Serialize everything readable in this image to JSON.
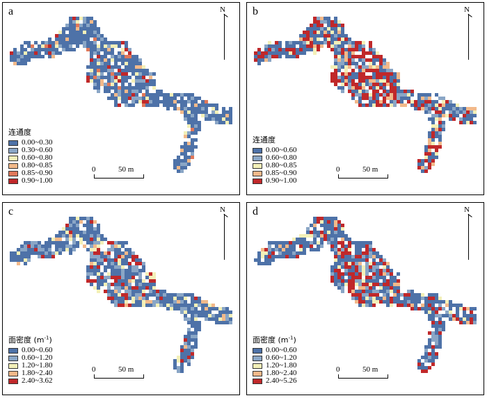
{
  "north_label": "N",
  "scale": {
    "zero": "0",
    "end": "50 m"
  },
  "panels": [
    {
      "label": "a",
      "legend_title": "连通度",
      "legend_unit": "",
      "legend": [
        "0.00~0.30",
        "0.30~0.60",
        "0.60~0.80",
        "0.80~0.85",
        "0.85~0.90",
        "0.90~1.00"
      ],
      "colors": [
        "#4e72a8",
        "#8aa6c6",
        "#f3f0b8",
        "#f2b98a",
        "#e0785a",
        "#c0282a"
      ],
      "weights": [
        0.72,
        0.12,
        0.07,
        0.04,
        0.03,
        0.02
      ]
    },
    {
      "label": "b",
      "legend_title": "连通度",
      "legend_unit": "",
      "legend": [
        "0.00~0.60",
        "0.60~0.80",
        "0.80~0.85",
        "0.85~0.90",
        "0.90~1.00"
      ],
      "colors": [
        "#4e72a8",
        "#8aa6c6",
        "#f3f0b8",
        "#f2b98a",
        "#c0282a"
      ],
      "weights": [
        0.48,
        0.12,
        0.08,
        0.08,
        0.24
      ]
    },
    {
      "label": "c",
      "legend_title": "面密度",
      "legend_unit": "-1",
      "legend": [
        "0.00~0.60",
        "0.60~1.20",
        "1.20~1.80",
        "1.80~2.40",
        "2.40~3.62"
      ],
      "colors": [
        "#4e72a8",
        "#8aa6c6",
        "#f3f0b8",
        "#f2b98a",
        "#c0282a"
      ],
      "weights": [
        0.62,
        0.18,
        0.1,
        0.06,
        0.04
      ]
    },
    {
      "label": "d",
      "legend_title": "面密度",
      "legend_unit": "-1",
      "legend": [
        "0.00~0.60",
        "0.60~1.20",
        "1.20~1.80",
        "1.80~2.40",
        "2.40~5.26"
      ],
      "colors": [
        "#4e72a8",
        "#8aa6c6",
        "#f3f0b8",
        "#f2b98a",
        "#c0282a"
      ],
      "weights": [
        0.62,
        0.13,
        0.08,
        0.05,
        0.12
      ]
    }
  ]
}
